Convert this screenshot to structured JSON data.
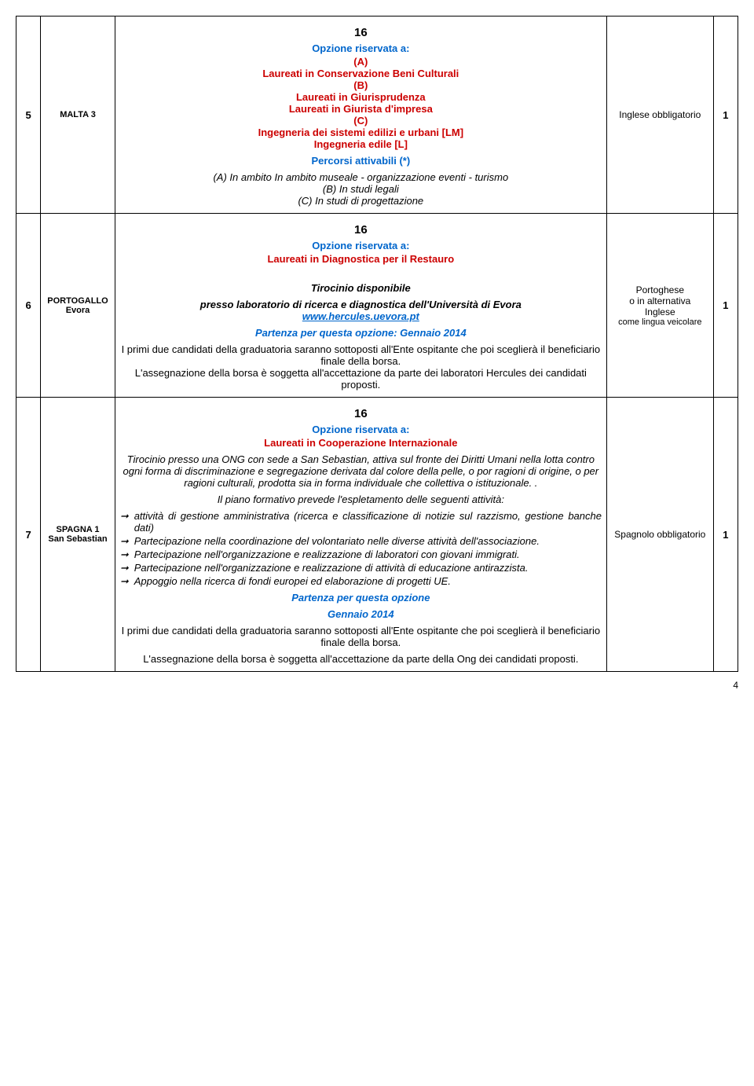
{
  "pageNumber": "4",
  "rows": [
    {
      "idx": "5",
      "loc": "MALTA 3",
      "req": "Inglese obbligatorio",
      "n": "1",
      "n16": "16",
      "opzione": "Opzione riservata a:",
      "lineA": "(A)",
      "lineA2": "Laureati in Conservazione Beni Culturali",
      "lineB": "(B)",
      "lineB2": "Laureati in Giurisprudenza",
      "lineB3": "Laureati in Giurista d'impresa",
      "lineC": "(C)",
      "lineC2": "Ingegneria dei sistemi edilizi e urbani [LM]",
      "lineC3": "Ingegneria edile [L]",
      "percorsi": "Percorsi attivabili (*)",
      "pA": "(A) In ambito In ambito museale - organizzazione eventi - turismo",
      "pB": "(B) In studi legali",
      "pC": "(C) In studi di progettazione"
    },
    {
      "idx": "6",
      "loc1": "PORTOGALLO",
      "loc2": "Evora",
      "req1": "Portoghese",
      "req2": "o in alternativa",
      "req3": "Inglese",
      "req4": "come lingua veicolare",
      "n": "1",
      "n16": "16",
      "opzione": "Opzione riservata a:",
      "lineRed": "Laureati in Diagnostica per il Restauro",
      "tiro": "Tirocinio disponibile",
      "presso": "presso laboratorio di ricerca e diagnostica dell'Università di Evora",
      "link": "www.hercules.uevora.pt",
      "partenza": "Partenza per questa opzione: Gennaio 2014",
      "primi": "I primi due candidati della graduatoria saranno sottoposti all'Ente ospitante che poi sceglierà il beneficiario finale della borsa.",
      "asseg": "L'assegnazione della borsa è soggetta all'accettazione da parte dei laboratori Hercules dei candidati proposti."
    },
    {
      "idx": "7",
      "loc1": "SPAGNA 1",
      "loc2": "San Sebastian",
      "req": "Spagnolo obbligatorio",
      "n": "1",
      "n16": "16",
      "opzione": "Opzione riservata a:",
      "lineRed": "Laureati in Cooperazione Internazionale",
      "tiro": "Tirocinio presso una ONG con sede a San Sebastian, attiva sul fronte dei Diritti Umani nella lotta contro ogni forma di discriminazione e segregazione derivata dal colore della pelle, o por ragioni di origine, o per ragioni culturali, prodotta sia in forma individuale che collettiva o istituzionale. .",
      "piano": "Il piano formativo prevede l'espletamento delle seguenti attività:",
      "b1": "attività di gestione amministrativa (ricerca e classificazione di notizie sul razzismo, gestione banche dati)",
      "b2": "Partecipazione nella coordinazione del volontariato nelle diverse attività dell'associazione.",
      "b3": "Partecipazione nell'organizzazione e realizzazione di laboratori con giovani immigrati.",
      "b4": "Partecipazione nell'organizzazione e realizzazione di attività di educazione antirazzista.",
      "b5": "Appoggio nella ricerca di fondi europei ed elaborazione di progetti UE.",
      "partenza1": "Partenza per questa opzione",
      "partenza2": "Gennaio 2014",
      "primi": "I primi due candidati della graduatoria saranno sottoposti all'Ente ospitante che poi sceglierà il beneficiario finale della borsa.",
      "asseg": "L'assegnazione della borsa è soggetta all'accettazione da parte della Ong dei candidati proposti."
    }
  ]
}
